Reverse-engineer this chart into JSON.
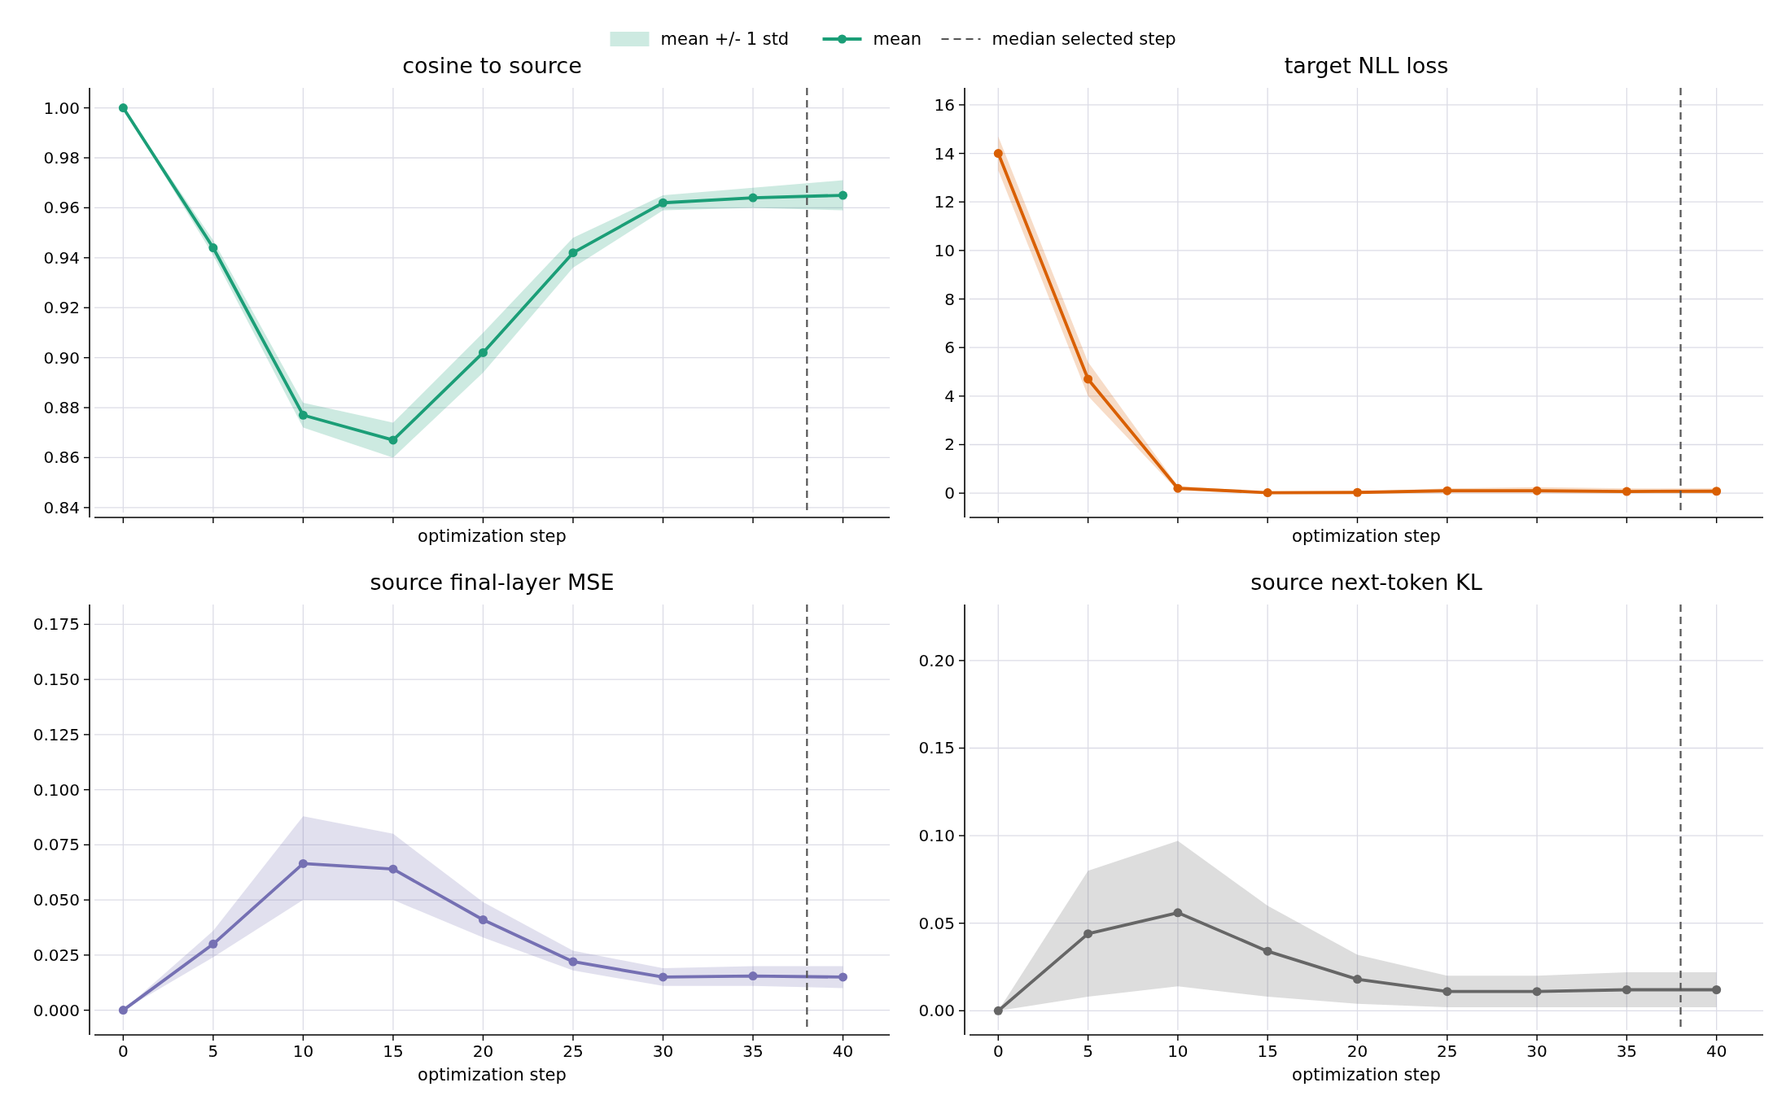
{
  "chart_data": [
    {
      "type": "line",
      "title": "cosine to source",
      "xlabel": "optimization step",
      "x": [
        0,
        5,
        10,
        15,
        20,
        25,
        30,
        35,
        40
      ],
      "xlim": [
        -1.6,
        42.6
      ],
      "xticks": [
        0,
        5,
        10,
        15,
        20,
        25,
        30,
        35,
        40
      ],
      "ylim": [
        0.838,
        1.008
      ],
      "yticks": [
        0.84,
        0.86,
        0.88,
        {
          "value": 0.9,
          "label": "0.90"
        },
        0.92,
        0.94,
        0.96,
        0.98,
        {
          "value": 1.0,
          "label": "1.00"
        }
      ],
      "tick_labels": "y",
      "grid": true,
      "legend": "top",
      "marker": "circle",
      "line_style": "solid",
      "annotations": [
        "mean +/- 1 std"
      ],
      "series": [
        {
          "name": "mean",
          "color": "#1b9e77",
          "values": [
            1.0,
            0.944,
            0.877,
            0.867,
            0.902,
            0.942,
            0.962,
            0.964,
            0.965
          ],
          "lower": [
            1.0,
            0.941,
            0.872,
            0.86,
            0.894,
            0.936,
            0.959,
            0.96,
            0.959
          ],
          "upper": [
            1.0,
            0.947,
            0.882,
            0.874,
            0.91,
            0.948,
            0.965,
            0.968,
            0.971
          ]
        }
      ],
      "ref_lines": [
        {
          "axis": "x",
          "value": 38,
          "label": "median selected step",
          "color": "#555555",
          "line_style": "dashed"
        }
      ]
    },
    {
      "type": "line",
      "title": "target NLL loss",
      "xlabel": "optimization step",
      "x": [
        0,
        5,
        10,
        15,
        20,
        25,
        30,
        35,
        40
      ],
      "xlim": [
        -1.6,
        42.6
      ],
      "xticks": [
        0,
        5,
        10,
        15,
        20,
        25,
        30,
        35,
        40
      ],
      "ylim": [
        -0.8,
        16.7
      ],
      "yticks": [
        0,
        2,
        4,
        6,
        8,
        10,
        12,
        14,
        16
      ],
      "tick_labels": "y",
      "grid": true,
      "marker": "circle",
      "line_style": "solid",
      "series": [
        {
          "color": "#d95f02",
          "values": [
            14.0,
            4.7,
            0.2,
            0.02,
            0.03,
            0.1,
            0.1,
            0.07,
            0.08
          ],
          "lower": [
            13.3,
            4.0,
            0.1,
            0,
            0,
            0,
            0,
            0,
            0
          ],
          "upper": [
            14.7,
            5.4,
            0.3,
            0.05,
            0.06,
            0.2,
            0.25,
            0.2,
            0.2
          ]
        }
      ],
      "ref_lines": [
        {
          "axis": "x",
          "value": 38,
          "color": "#555555",
          "line_style": "dashed"
        }
      ]
    },
    {
      "type": "line",
      "title": "source final-layer MSE",
      "xlabel": "optimization step",
      "x": [
        0,
        5,
        10,
        15,
        20,
        25,
        30,
        35,
        40
      ],
      "xlim": [
        -1.6,
        42.6
      ],
      "xticks": [
        0,
        5,
        10,
        15,
        20,
        25,
        30,
        35,
        40
      ],
      "ylim": [
        -0.009,
        0.184
      ],
      "yticks": [
        {
          "value": 0,
          "label": "0.000"
        },
        0.025,
        {
          "value": 0.05,
          "label": "0.050"
        },
        0.075,
        {
          "value": 0.1,
          "label": "0.100"
        },
        0.125,
        {
          "value": 0.15,
          "label": "0.150"
        },
        0.175
      ],
      "grid": true,
      "marker": "circle",
      "line_style": "solid",
      "series": [
        {
          "color": "#7570b3",
          "values": [
            0,
            0.03,
            0.0665,
            0.064,
            0.041,
            0.022,
            0.015,
            0.0155,
            0.015
          ],
          "lower": [
            0,
            0.024,
            0.05,
            0.05,
            0.033,
            0.018,
            0.011,
            0.011,
            0.01
          ],
          "upper": [
            0,
            0.036,
            0.088,
            0.08,
            0.049,
            0.027,
            0.019,
            0.02,
            0.02
          ]
        }
      ],
      "ref_lines": [
        {
          "axis": "x",
          "value": 38,
          "color": "#555555",
          "line_style": "dashed"
        }
      ]
    },
    {
      "type": "line",
      "title": "source next-token KL",
      "xlabel": "optimization step",
      "x": [
        0,
        5,
        10,
        15,
        20,
        25,
        30,
        35,
        40
      ],
      "xlim": [
        -1.6,
        42.6
      ],
      "xticks": [
        0,
        5,
        10,
        15,
        20,
        25,
        30,
        35,
        40
      ],
      "ylim": [
        -0.011,
        0.232
      ],
      "yticks": [
        {
          "value": 0,
          "label": "0.00"
        },
        0.05,
        {
          "value": 0.1,
          "label": "0.10"
        },
        0.15,
        {
          "value": 0.2,
          "label": "0.20"
        }
      ],
      "grid": true,
      "marker": "circle",
      "line_style": "solid",
      "series": [
        {
          "color": "#666666",
          "values": [
            0,
            0.044,
            0.056,
            0.034,
            0.018,
            0.011,
            0.011,
            0.012,
            0.012
          ],
          "lower": [
            0,
            0.008,
            0.014,
            0.008,
            0.004,
            0.002,
            0.002,
            0.002,
            0.002
          ],
          "upper": [
            0,
            0.08,
            0.097,
            0.06,
            0.032,
            0.02,
            0.02,
            0.022,
            0.022
          ]
        }
      ],
      "ref_lines": [
        {
          "axis": "x",
          "value": 38,
          "color": "#555555",
          "line_style": "dashed"
        }
      ]
    }
  ]
}
